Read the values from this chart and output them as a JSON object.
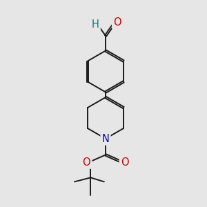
{
  "bg_color": "#e6e6e6",
  "bond_color": "#1a1a1a",
  "bond_width": 1.4,
  "atom_colors": {
    "O": "#cc0000",
    "N": "#0000cc",
    "H": "#008080"
  },
  "font_size_atom": 10,
  "fig_size": [
    3.0,
    3.0
  ],
  "dpi": 100
}
